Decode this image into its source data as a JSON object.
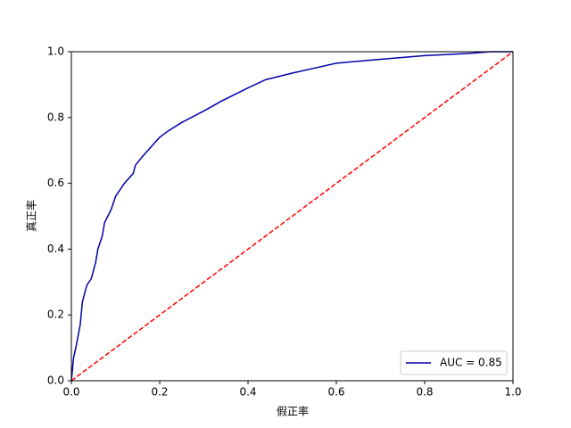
{
  "chart_data": {
    "type": "line",
    "xlabel": "假正率",
    "ylabel": "真正率",
    "xlim": [
      0,
      1
    ],
    "ylim": [
      0,
      1
    ],
    "xticks": [
      {
        "value": 0,
        "label": "0.0"
      },
      0.2,
      0.4,
      0.6,
      0.8,
      {
        "value": 1,
        "label": "1.0"
      }
    ],
    "yticks": [
      {
        "value": 0,
        "label": "0.0"
      },
      0.2,
      0.4,
      0.6,
      0.8,
      {
        "value": 1,
        "label": "1.0"
      }
    ],
    "legend": "lower right",
    "series": [
      {
        "name": "AUC = 0.85",
        "color": "#0000aa",
        "x": [
          0,
          0.005,
          0.01,
          0.02,
          0.025,
          0.035,
          0.045,
          0.055,
          0.06,
          0.07,
          0.075,
          0.09,
          0.1,
          0.12,
          0.14,
          0.145,
          0.16,
          0.18,
          0.2,
          0.22,
          0.25,
          0.3,
          0.34,
          0.4,
          0.44,
          0.5,
          0.55,
          0.6,
          0.7,
          0.8,
          0.9,
          0.95,
          1
        ],
        "values": [
          0,
          0.07,
          0.1,
          0.17,
          0.24,
          0.29,
          0.31,
          0.36,
          0.4,
          0.44,
          0.48,
          0.52,
          0.56,
          0.6,
          0.63,
          0.655,
          0.68,
          0.71,
          0.74,
          0.76,
          0.785,
          0.82,
          0.85,
          0.89,
          0.915,
          0.935,
          0.95,
          0.965,
          0.977,
          0.988,
          0.995,
          1,
          1
        ]
      },
      {
        "color": "#ff0000",
        "dashed": true,
        "x": [
          0,
          1
        ],
        "values": [
          0,
          1
        ]
      }
    ]
  }
}
